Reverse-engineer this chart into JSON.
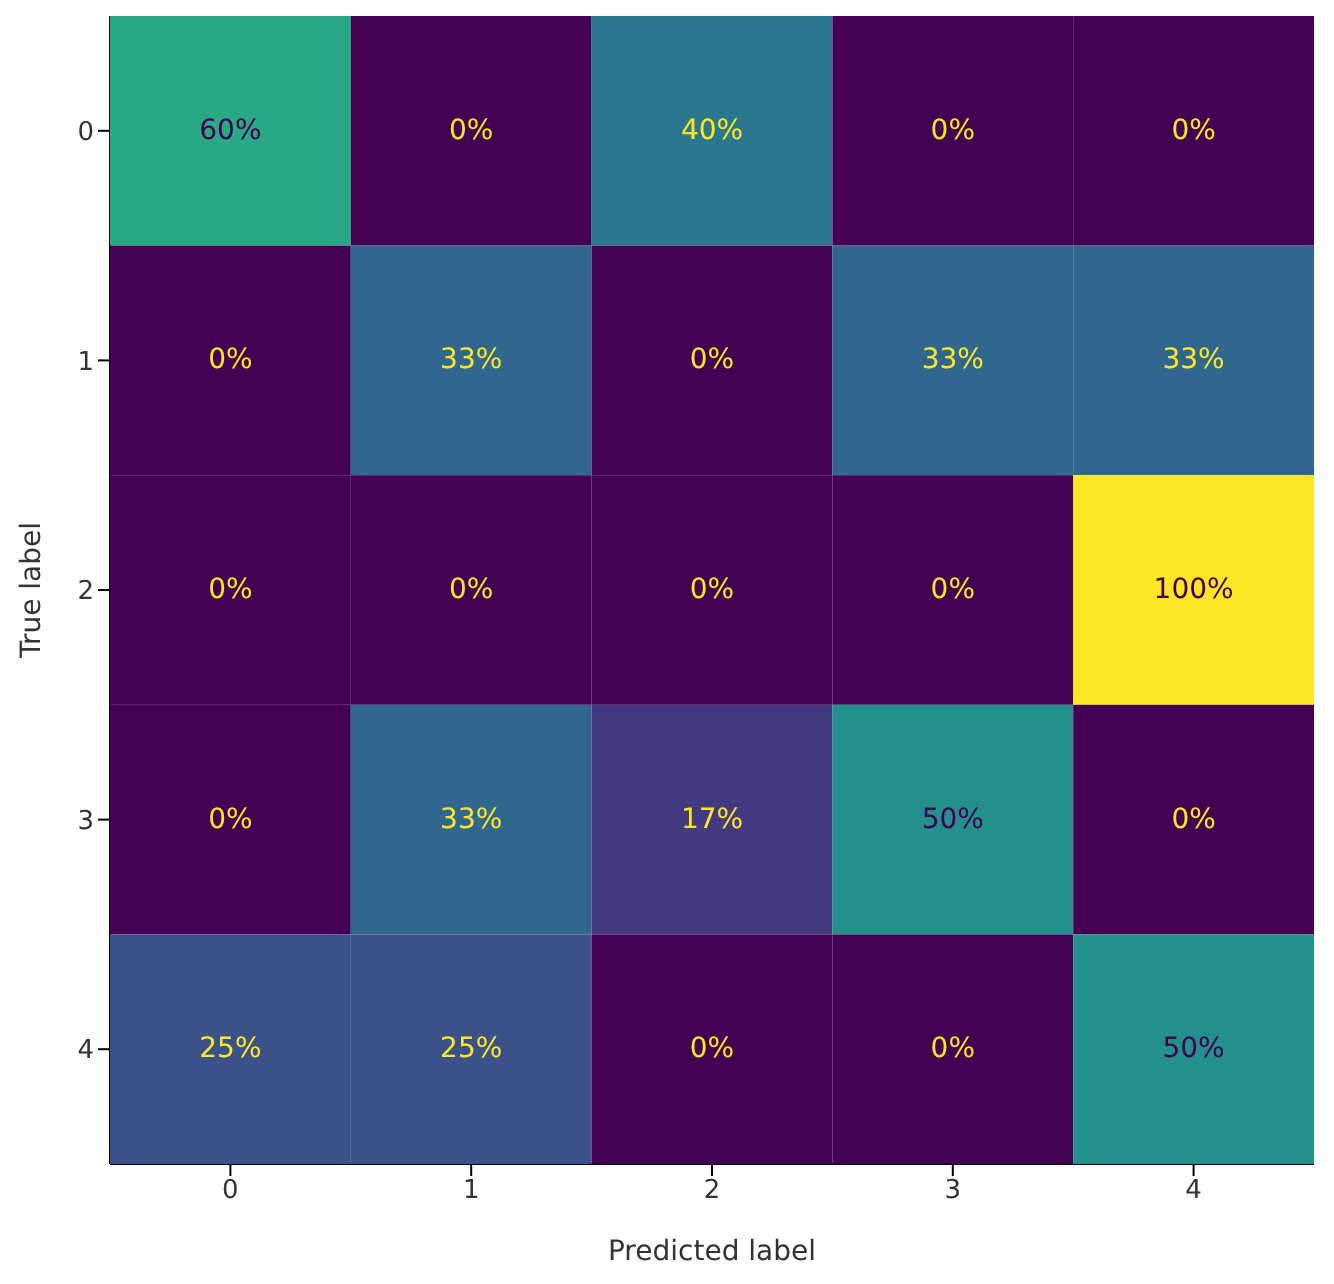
{
  "chart_data": {
    "type": "heatmap",
    "xlabel": "Predicted label",
    "ylabel": "True label",
    "categories": [
      "0",
      "1",
      "2",
      "3",
      "4"
    ],
    "y_categories": [
      "0",
      "1",
      "2",
      "3",
      "4"
    ],
    "cells": [
      [
        60,
        0,
        40,
        0,
        0
      ],
      [
        0,
        33,
        0,
        33,
        33
      ],
      [
        0,
        0,
        0,
        0,
        100
      ],
      [
        0,
        33,
        17,
        50,
        0
      ],
      [
        25,
        25,
        0,
        0,
        50
      ]
    ],
    "cell_labels": [
      [
        "60%",
        "0%",
        "40%",
        "0%",
        "0%"
      ],
      [
        "0%",
        "33%",
        "0%",
        "33%",
        "33%"
      ],
      [
        "0%",
        "0%",
        "0%",
        "0%",
        "100%"
      ],
      [
        "0%",
        "33%",
        "17%",
        "50%",
        "0%"
      ],
      [
        "25%",
        "25%",
        "0%",
        "0%",
        "50%"
      ]
    ]
  }
}
